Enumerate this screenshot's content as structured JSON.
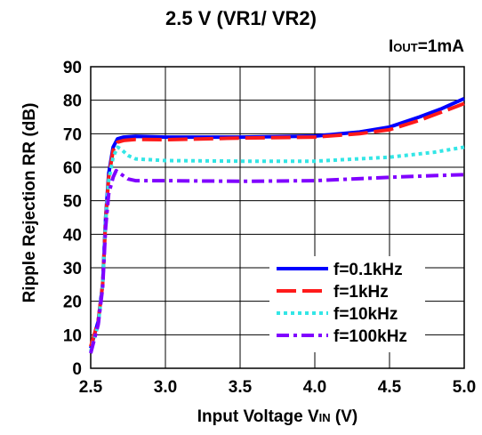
{
  "chart_data": {
    "type": "line",
    "title": "2.5 V (VR1/ VR2)",
    "condition": {
      "main": "I",
      "sub": "OUT",
      "rest": "=1mA"
    },
    "xlabel": {
      "pre": "Input Voltage V",
      "sub": "IN",
      "post": " (V)"
    },
    "ylabel": "Ripple Rejection RR (dB)",
    "xlim": [
      2.5,
      5.0
    ],
    "ylim": [
      0,
      90
    ],
    "x_ticks": [
      "2.5",
      "3.0",
      "3.5",
      "4.0",
      "4.5",
      "5.0"
    ],
    "y_ticks": [
      "0",
      "10",
      "20",
      "30",
      "40",
      "50",
      "60",
      "70",
      "80",
      "90"
    ],
    "grid": true,
    "legend_position": "bottom-right",
    "series": [
      {
        "name": "f=0.1kHz",
        "color": "#0000ff",
        "style": "solid",
        "points": [
          [
            2.5,
            6
          ],
          [
            2.55,
            14
          ],
          [
            2.58,
            25
          ],
          [
            2.6,
            45
          ],
          [
            2.62,
            58
          ],
          [
            2.65,
            66
          ],
          [
            2.68,
            68.5
          ],
          [
            2.72,
            69
          ],
          [
            2.8,
            69.2
          ],
          [
            3.0,
            69
          ],
          [
            3.5,
            69
          ],
          [
            4.0,
            69.3
          ],
          [
            4.3,
            70.5
          ],
          [
            4.5,
            72
          ],
          [
            4.7,
            75
          ],
          [
            4.85,
            77.5
          ],
          [
            5.0,
            80.5
          ]
        ]
      },
      {
        "name": "f=1kHz",
        "color": "#ff1a1a",
        "style": "dash",
        "points": [
          [
            2.5,
            6.5
          ],
          [
            2.55,
            14
          ],
          [
            2.58,
            25
          ],
          [
            2.6,
            44
          ],
          [
            2.62,
            57
          ],
          [
            2.65,
            65
          ],
          [
            2.68,
            67.5
          ],
          [
            2.72,
            68
          ],
          [
            2.8,
            68.3
          ],
          [
            3.0,
            68.2
          ],
          [
            3.5,
            68.7
          ],
          [
            4.0,
            69
          ],
          [
            4.3,
            70
          ],
          [
            4.5,
            71.2
          ],
          [
            4.7,
            74
          ],
          [
            4.85,
            76.5
          ],
          [
            5.0,
            79
          ]
        ]
      },
      {
        "name": "f=10kHz",
        "color": "#33e6e6",
        "style": "dot",
        "points": [
          [
            2.5,
            5
          ],
          [
            2.55,
            13
          ],
          [
            2.58,
            25
          ],
          [
            2.6,
            44
          ],
          [
            2.62,
            56
          ],
          [
            2.65,
            63
          ],
          [
            2.68,
            66
          ],
          [
            2.7,
            65.5
          ],
          [
            2.75,
            63.5
          ],
          [
            2.8,
            62.5
          ],
          [
            3.0,
            62
          ],
          [
            3.5,
            61.8
          ],
          [
            4.0,
            61.8
          ],
          [
            4.5,
            63
          ],
          [
            4.8,
            64.5
          ],
          [
            5.0,
            66
          ]
        ]
      },
      {
        "name": "f=100kHz",
        "color": "#8000ff",
        "style": "dashdot",
        "points": [
          [
            2.5,
            4.5
          ],
          [
            2.55,
            13
          ],
          [
            2.58,
            24
          ],
          [
            2.6,
            42
          ],
          [
            2.62,
            52
          ],
          [
            2.65,
            57
          ],
          [
            2.67,
            59
          ],
          [
            2.7,
            58
          ],
          [
            2.75,
            56.5
          ],
          [
            2.8,
            56
          ],
          [
            3.0,
            56
          ],
          [
            3.5,
            55.8
          ],
          [
            4.0,
            56
          ],
          [
            4.5,
            57
          ],
          [
            4.8,
            57.5
          ],
          [
            5.0,
            57.8
          ]
        ]
      }
    ]
  }
}
